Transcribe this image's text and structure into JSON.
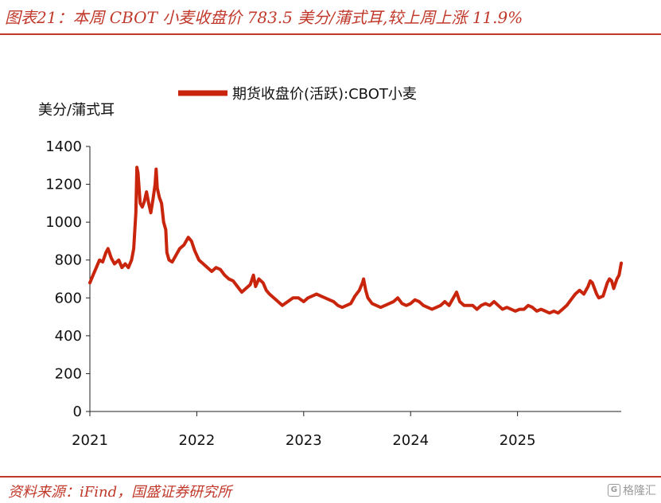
{
  "header": {
    "title": "图表21：本周 CBOT 小麦收盘价 783.5 美分/蒲式耳,较上周上涨 11.9%"
  },
  "footer": {
    "source": "资料来源：iFind，国盛证券研究所",
    "watermark": "格隆汇",
    "watermark_logo": "G"
  },
  "colors": {
    "accent": "#c0392b",
    "series": "#c8250c"
  },
  "chart_data": {
    "type": "line",
    "title": "",
    "ylabel": "美分/蒲式耳",
    "ylim": [
      0,
      1400
    ],
    "yticks": [
      0,
      200,
      400,
      600,
      800,
      1000,
      1200,
      1400
    ],
    "xlim": [
      2021.0,
      2025.97
    ],
    "xticks": [
      2021,
      2022,
      2023,
      2024,
      2025
    ],
    "xtick_labels": [
      "2021",
      "2022",
      "2023",
      "2024",
      "2025"
    ],
    "legend_position": "top",
    "grid": false,
    "series": [
      {
        "name": "期货收盘价(活跃):CBOT小麦",
        "points": [
          [
            2021.0,
            680
          ],
          [
            2021.03,
            720
          ],
          [
            2021.06,
            760
          ],
          [
            2021.09,
            800
          ],
          [
            2021.12,
            790
          ],
          [
            2021.15,
            840
          ],
          [
            2021.17,
            860
          ],
          [
            2021.2,
            810
          ],
          [
            2021.23,
            780
          ],
          [
            2021.27,
            800
          ],
          [
            2021.3,
            760
          ],
          [
            2021.33,
            780
          ],
          [
            2021.36,
            760
          ],
          [
            2021.39,
            800
          ],
          [
            2021.41,
            860
          ],
          [
            2021.43,
            1050
          ],
          [
            2021.44,
            1290
          ],
          [
            2021.45,
            1260
          ],
          [
            2021.47,
            1100
          ],
          [
            2021.49,
            1080
          ],
          [
            2021.51,
            1110
          ],
          [
            2021.53,
            1160
          ],
          [
            2021.55,
            1100
          ],
          [
            2021.57,
            1050
          ],
          [
            2021.59,
            1120
          ],
          [
            2021.61,
            1200
          ],
          [
            2021.62,
            1280
          ],
          [
            2021.63,
            1180
          ],
          [
            2021.65,
            1130
          ],
          [
            2021.67,
            1100
          ],
          [
            2021.69,
            1000
          ],
          [
            2021.71,
            960
          ],
          [
            2021.72,
            840
          ],
          [
            2021.74,
            800
          ],
          [
            2021.77,
            790
          ],
          [
            2021.8,
            820
          ],
          [
            2021.84,
            860
          ],
          [
            2021.88,
            880
          ],
          [
            2021.92,
            920
          ],
          [
            2021.95,
            900
          ],
          [
            2021.98,
            850
          ],
          [
            2022.02,
            800
          ],
          [
            2022.06,
            780
          ],
          [
            2022.1,
            760
          ],
          [
            2022.14,
            740
          ],
          [
            2022.18,
            760
          ],
          [
            2022.22,
            750
          ],
          [
            2022.26,
            720
          ],
          [
            2022.3,
            700
          ],
          [
            2022.34,
            690
          ],
          [
            2022.38,
            660
          ],
          [
            2022.42,
            630
          ],
          [
            2022.46,
            650
          ],
          [
            2022.5,
            670
          ],
          [
            2022.53,
            720
          ],
          [
            2022.55,
            660
          ],
          [
            2022.58,
            700
          ],
          [
            2022.62,
            680
          ],
          [
            2022.65,
            640
          ],
          [
            2022.68,
            620
          ],
          [
            2022.72,
            600
          ],
          [
            2022.76,
            580
          ],
          [
            2022.8,
            560
          ],
          [
            2022.85,
            580
          ],
          [
            2022.9,
            600
          ],
          [
            2022.95,
            600
          ],
          [
            2023.0,
            580
          ],
          [
            2023.04,
            600
          ],
          [
            2023.08,
            610
          ],
          [
            2023.12,
            620
          ],
          [
            2023.16,
            610
          ],
          [
            2023.2,
            600
          ],
          [
            2023.24,
            590
          ],
          [
            2023.28,
            580
          ],
          [
            2023.32,
            560
          ],
          [
            2023.36,
            550
          ],
          [
            2023.4,
            560
          ],
          [
            2023.44,
            570
          ],
          [
            2023.48,
            610
          ],
          [
            2023.52,
            640
          ],
          [
            2023.55,
            680
          ],
          [
            2023.56,
            700
          ],
          [
            2023.58,
            640
          ],
          [
            2023.6,
            600
          ],
          [
            2023.64,
            570
          ],
          [
            2023.68,
            560
          ],
          [
            2023.72,
            550
          ],
          [
            2023.76,
            560
          ],
          [
            2023.8,
            570
          ],
          [
            2023.84,
            580
          ],
          [
            2023.88,
            600
          ],
          [
            2023.92,
            570
          ],
          [
            2023.96,
            560
          ],
          [
            2024.0,
            570
          ],
          [
            2024.04,
            590
          ],
          [
            2024.08,
            580
          ],
          [
            2024.12,
            560
          ],
          [
            2024.16,
            550
          ],
          [
            2024.2,
            540
          ],
          [
            2024.24,
            550
          ],
          [
            2024.28,
            560
          ],
          [
            2024.32,
            580
          ],
          [
            2024.36,
            560
          ],
          [
            2024.4,
            600
          ],
          [
            2024.43,
            630
          ],
          [
            2024.46,
            580
          ],
          [
            2024.5,
            560
          ],
          [
            2024.54,
            560
          ],
          [
            2024.58,
            560
          ],
          [
            2024.62,
            540
          ],
          [
            2024.66,
            560
          ],
          [
            2024.7,
            570
          ],
          [
            2024.74,
            560
          ],
          [
            2024.78,
            580
          ],
          [
            2024.82,
            560
          ],
          [
            2024.86,
            540
          ],
          [
            2024.9,
            550
          ],
          [
            2024.94,
            540
          ],
          [
            2024.98,
            530
          ],
          [
            2025.02,
            540
          ],
          [
            2025.06,
            540
          ],
          [
            2025.1,
            560
          ],
          [
            2025.14,
            550
          ],
          [
            2025.18,
            530
          ],
          [
            2025.22,
            540
          ],
          [
            2025.26,
            530
          ],
          [
            2025.3,
            520
          ],
          [
            2025.34,
            530
          ],
          [
            2025.38,
            520
          ],
          [
            2025.42,
            540
          ],
          [
            2025.46,
            560
          ],
          [
            2025.5,
            590
          ],
          [
            2025.54,
            620
          ],
          [
            2025.58,
            640
          ],
          [
            2025.62,
            620
          ],
          [
            2025.66,
            660
          ],
          [
            2025.68,
            690
          ],
          [
            2025.7,
            680
          ],
          [
            2025.72,
            650
          ],
          [
            2025.74,
            620
          ],
          [
            2025.76,
            600
          ],
          [
            2025.8,
            610
          ],
          [
            2025.84,
            680
          ],
          [
            2025.86,
            700
          ],
          [
            2025.88,
            690
          ],
          [
            2025.9,
            650
          ],
          [
            2025.93,
            700
          ],
          [
            2025.95,
            720
          ],
          [
            2025.97,
            783.5
          ]
        ]
      }
    ]
  }
}
